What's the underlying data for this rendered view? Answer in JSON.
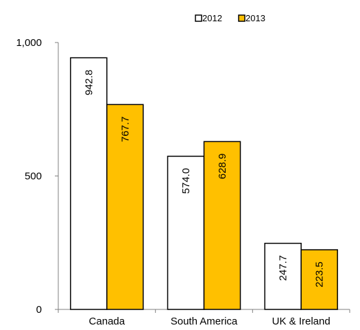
{
  "chart_data": {
    "type": "bar",
    "title": "",
    "xlabel": "",
    "ylabel": "",
    "categories": [
      "Canada",
      "South America",
      "UK & Ireland"
    ],
    "series": [
      {
        "name": "2012",
        "values": [
          942.8,
          574.0,
          247.7
        ],
        "color": "#ffffff",
        "labels": [
          "942.8",
          "574.0",
          "247.7"
        ]
      },
      {
        "name": "2013",
        "values": [
          767.7,
          628.9,
          223.5
        ],
        "color": "#ffc000",
        "labels": [
          "767.7",
          "628.9",
          "223.5"
        ]
      }
    ],
    "ylim": [
      0,
      1000
    ],
    "y_ticks": [
      0,
      500,
      1000
    ],
    "y_tick_labels": [
      "0",
      "500",
      "1,000"
    ],
    "legend_position": "top-center",
    "grid": false,
    "bar_outline_color": "#000000"
  }
}
